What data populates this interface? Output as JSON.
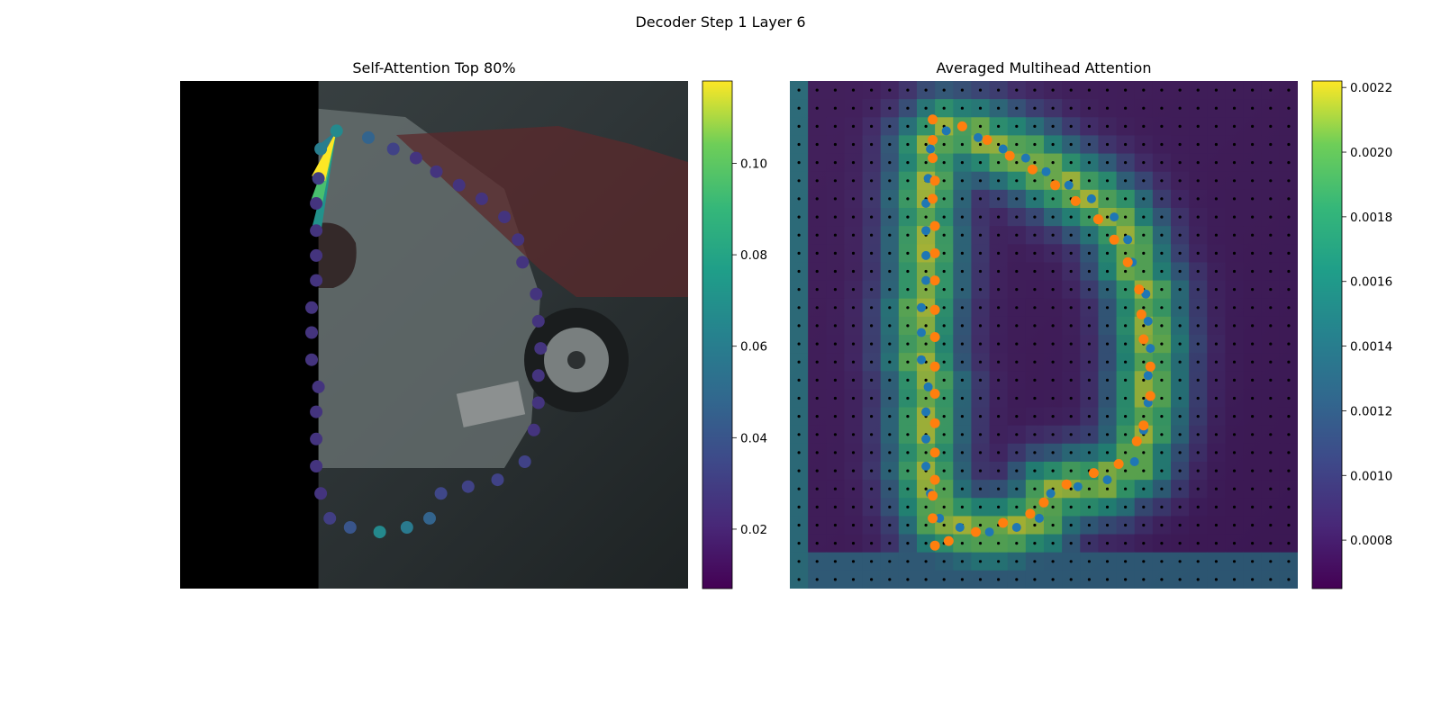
{
  "figure": {
    "suptitle": "Decoder Step 1 Layer 6"
  },
  "chart_data": [
    {
      "type": "scatter",
      "title": "Self-Attention Top 80%",
      "image_extent": [
        0,
        224,
        224,
        0
      ],
      "black_band_xmax": 61,
      "colormap": "viridis",
      "colorbar": {
        "vmin": 0.007,
        "vmax": 0.118,
        "ticks": [
          0.02,
          0.04,
          0.06,
          0.08,
          0.1
        ],
        "tick_labels": [
          "0.02",
          "0.04",
          "0.06",
          "0.08",
          "0.10"
        ]
      },
      "points": [
        {
          "x": 69,
          "y": 22,
          "w": 0.066
        },
        {
          "x": 83,
          "y": 25,
          "w": 0.047
        },
        {
          "x": 94,
          "y": 30,
          "w": 0.032
        },
        {
          "x": 104,
          "y": 34,
          "w": 0.026
        },
        {
          "x": 113,
          "y": 40,
          "w": 0.026
        },
        {
          "x": 123,
          "y": 46,
          "w": 0.026
        },
        {
          "x": 133,
          "y": 52,
          "w": 0.026
        },
        {
          "x": 143,
          "y": 60,
          "w": 0.026
        },
        {
          "x": 149,
          "y": 70,
          "w": 0.026
        },
        {
          "x": 151,
          "y": 80,
          "w": 0.026
        },
        {
          "x": 157,
          "y": 94,
          "w": 0.026
        },
        {
          "x": 158,
          "y": 106,
          "w": 0.026
        },
        {
          "x": 159,
          "y": 118,
          "w": 0.026
        },
        {
          "x": 158,
          "y": 130,
          "w": 0.026
        },
        {
          "x": 158,
          "y": 142,
          "w": 0.026
        },
        {
          "x": 156,
          "y": 154,
          "w": 0.026
        },
        {
          "x": 152,
          "y": 168,
          "w": 0.032
        },
        {
          "x": 140,
          "y": 176,
          "w": 0.032
        },
        {
          "x": 127,
          "y": 179,
          "w": 0.032
        },
        {
          "x": 115,
          "y": 182,
          "w": 0.034
        },
        {
          "x": 110,
          "y": 193,
          "w": 0.047
        },
        {
          "x": 100,
          "y": 197,
          "w": 0.058
        },
        {
          "x": 88,
          "y": 199,
          "w": 0.066
        },
        {
          "x": 75,
          "y": 197,
          "w": 0.04
        },
        {
          "x": 66,
          "y": 193,
          "w": 0.03
        },
        {
          "x": 62,
          "y": 182,
          "w": 0.026
        },
        {
          "x": 60,
          "y": 170,
          "w": 0.026
        },
        {
          "x": 60,
          "y": 158,
          "w": 0.026
        },
        {
          "x": 60,
          "y": 146,
          "w": 0.026
        },
        {
          "x": 61,
          "y": 135,
          "w": 0.026
        },
        {
          "x": 58,
          "y": 123,
          "w": 0.026
        },
        {
          "x": 58,
          "y": 111,
          "w": 0.026
        },
        {
          "x": 58,
          "y": 100,
          "w": 0.026
        },
        {
          "x": 60,
          "y": 88,
          "w": 0.026
        },
        {
          "x": 60,
          "y": 77,
          "w": 0.026
        },
        {
          "x": 60,
          "y": 66,
          "w": 0.026
        },
        {
          "x": 60,
          "y": 54,
          "w": 0.026
        },
        {
          "x": 61,
          "y": 43,
          "w": 0.03
        },
        {
          "x": 62,
          "y": 30,
          "w": 0.06
        }
      ],
      "attention_lines": [
        {
          "from": 0,
          "to": 37,
          "w": 0.118
        },
        {
          "from": 0,
          "to": 36,
          "w": 0.095
        },
        {
          "from": 0,
          "to": 38,
          "w": 0.06
        },
        {
          "from": 0,
          "to": 35,
          "w": 0.07
        }
      ]
    },
    {
      "type": "heatmap",
      "title": "Averaged Multihead Attention",
      "image_extent": [
        0,
        224,
        224,
        0
      ],
      "grid_size": 28,
      "colormap": "viridis",
      "colorbar": {
        "vmin": 0.00065,
        "vmax": 0.00222,
        "ticks": [
          0.0008,
          0.001,
          0.0012,
          0.0014,
          0.0016,
          0.0018,
          0.002,
          0.0022
        ],
        "tick_labels": [
          "0.0008",
          "0.0010",
          "0.0012",
          "0.0014",
          "0.0016",
          "0.0018",
          "0.0020",
          "0.0022"
        ]
      },
      "reference_points": [
        [
          69,
          22
        ],
        [
          83,
          25
        ],
        [
          94,
          30
        ],
        [
          104,
          34
        ],
        [
          113,
          40
        ],
        [
          123,
          46
        ],
        [
          133,
          52
        ],
        [
          143,
          60
        ],
        [
          149,
          70
        ],
        [
          151,
          80
        ],
        [
          157,
          94
        ],
        [
          158,
          106
        ],
        [
          159,
          118
        ],
        [
          158,
          130
        ],
        [
          158,
          142
        ],
        [
          156,
          154
        ],
        [
          152,
          168
        ],
        [
          140,
          176
        ],
        [
          127,
          179
        ],
        [
          115,
          182
        ],
        [
          110,
          193
        ],
        [
          100,
          197
        ],
        [
          88,
          199
        ],
        [
          75,
          197
        ],
        [
          66,
          193
        ],
        [
          62,
          182
        ],
        [
          60,
          170
        ],
        [
          60,
          158
        ],
        [
          60,
          146
        ],
        [
          61,
          135
        ],
        [
          58,
          123
        ],
        [
          58,
          111
        ],
        [
          58,
          100
        ],
        [
          60,
          88
        ],
        [
          60,
          77
        ],
        [
          60,
          66
        ],
        [
          60,
          54
        ],
        [
          61,
          43
        ],
        [
          62,
          30
        ]
      ],
      "predicted_points": [
        [
          63,
          17
        ],
        [
          76,
          20
        ],
        [
          87,
          26
        ],
        [
          97,
          33
        ],
        [
          107,
          39
        ],
        [
          117,
          46
        ],
        [
          126,
          53
        ],
        [
          136,
          61
        ],
        [
          143,
          70
        ],
        [
          149,
          80
        ],
        [
          154,
          92
        ],
        [
          155,
          103
        ],
        [
          156,
          114
        ],
        [
          159,
          126
        ],
        [
          159,
          139
        ],
        [
          156,
          152
        ],
        [
          153,
          159
        ],
        [
          145,
          169
        ],
        [
          134,
          173
        ],
        [
          122,
          178
        ],
        [
          112,
          186
        ],
        [
          106,
          191
        ],
        [
          94,
          195
        ],
        [
          82,
          199
        ],
        [
          70,
          203
        ],
        [
          64,
          205
        ],
        [
          63,
          193
        ],
        [
          63,
          183
        ],
        [
          64,
          176
        ],
        [
          64,
          164
        ],
        [
          64,
          151
        ],
        [
          64,
          138
        ],
        [
          64,
          126
        ],
        [
          64,
          113
        ],
        [
          64,
          101
        ],
        [
          64,
          88
        ],
        [
          64,
          76
        ],
        [
          64,
          64
        ],
        [
          63,
          52
        ],
        [
          64,
          44
        ],
        [
          63,
          34
        ],
        [
          63,
          26
        ]
      ]
    }
  ]
}
